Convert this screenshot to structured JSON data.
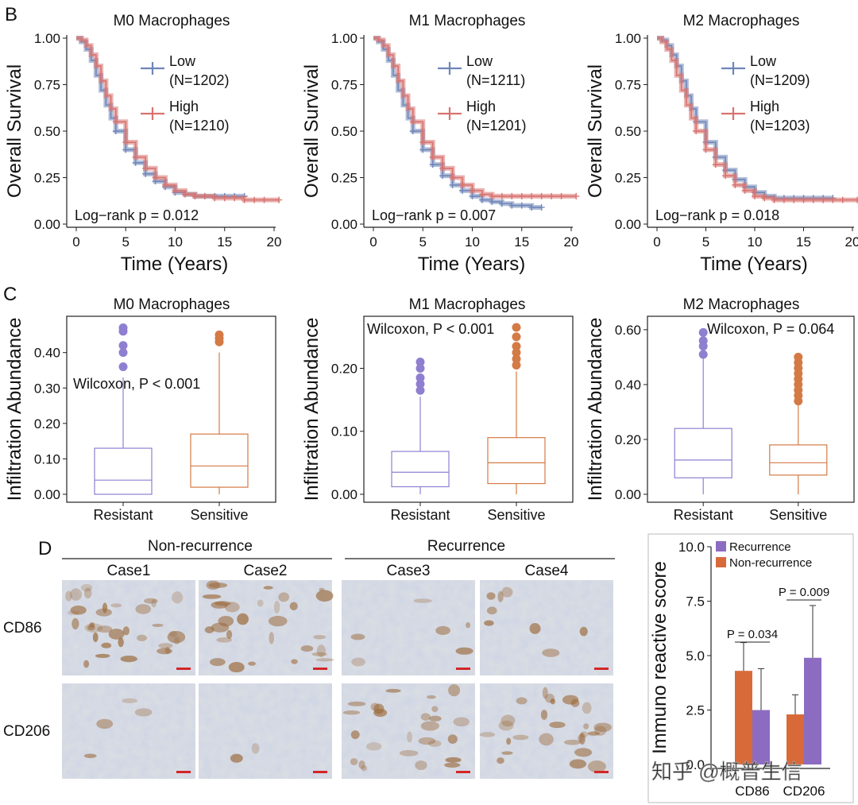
{
  "panel_labels": {
    "B": "B",
    "C": "C",
    "D": "D"
  },
  "colors": {
    "low": "#6f86b8",
    "high": "#d8736f",
    "resistant": "#8f7fd0",
    "sensitive": "#d47a45",
    "recurrence": "#8c6cc0",
    "non_recurrence": "#d86a3a",
    "ihc_bg": "#d9dde3",
    "ihc_brown": "#9a6838",
    "scale_bar": "#d42626"
  },
  "chart_data": [
    {
      "id": "km-m0",
      "type": "line",
      "title": "M0 Macrophages",
      "xlabel": "Time (Years)",
      "ylabel": "Overall Survival",
      "xlim": [
        0,
        20
      ],
      "ylim": [
        0,
        1
      ],
      "xticks": [
        "0",
        "5",
        "10",
        "15",
        "20"
      ],
      "yticks": [
        "0.00",
        "0.25",
        "0.50",
        "0.75",
        "1.00"
      ],
      "annotation": "Log−rank p = 0.012",
      "legend_position": "top-right",
      "series": [
        {
          "name": "Low",
          "n_label": "(N=1202)",
          "color": "#6f86b8",
          "x": [
            0,
            0.5,
            1,
            1.5,
            2,
            2.5,
            3,
            3.5,
            4,
            5,
            6,
            7,
            8,
            9,
            10,
            11,
            12,
            13,
            14,
            15,
            16,
            17
          ],
          "y": [
            1.0,
            0.98,
            0.94,
            0.88,
            0.8,
            0.72,
            0.64,
            0.57,
            0.5,
            0.4,
            0.33,
            0.27,
            0.23,
            0.2,
            0.17,
            0.16,
            0.15,
            0.15,
            0.15,
            0.15,
            0.15,
            0.15
          ]
        },
        {
          "name": "High",
          "n_label": "(N=1210)",
          "color": "#d8736f",
          "x": [
            0,
            0.5,
            1,
            1.5,
            2,
            2.5,
            3,
            3.5,
            4,
            5,
            6,
            7,
            8,
            9,
            10,
            11,
            12,
            13,
            14,
            15,
            16,
            17,
            18,
            19,
            20.5
          ],
          "y": [
            1.0,
            0.99,
            0.96,
            0.91,
            0.85,
            0.77,
            0.69,
            0.62,
            0.55,
            0.44,
            0.36,
            0.3,
            0.25,
            0.21,
            0.18,
            0.16,
            0.15,
            0.15,
            0.14,
            0.14,
            0.14,
            0.13,
            0.13,
            0.13,
            0.13
          ]
        }
      ]
    },
    {
      "id": "km-m1",
      "type": "line",
      "title": "M1 Macrophages",
      "xlabel": "Time (Years)",
      "ylabel": "Overall Survival",
      "xlim": [
        0,
        20
      ],
      "ylim": [
        0,
        1
      ],
      "xticks": [
        "0",
        "5",
        "10",
        "15",
        "20"
      ],
      "yticks": [
        "0.00",
        "0.25",
        "0.50",
        "0.75",
        "1.00"
      ],
      "annotation": "Log−rank p = 0.007",
      "legend_position": "top-right",
      "series": [
        {
          "name": "Low",
          "n_label": "(N=1211)",
          "color": "#6f86b8",
          "x": [
            0,
            0.5,
            1,
            1.5,
            2,
            2.5,
            3,
            3.5,
            4,
            5,
            6,
            7,
            8,
            9,
            10,
            11,
            12,
            13,
            14,
            15,
            16,
            17
          ],
          "y": [
            1.0,
            0.98,
            0.94,
            0.88,
            0.8,
            0.72,
            0.64,
            0.57,
            0.5,
            0.4,
            0.32,
            0.26,
            0.21,
            0.18,
            0.15,
            0.13,
            0.12,
            0.11,
            0.1,
            0.1,
            0.09,
            0.09
          ]
        },
        {
          "name": "High",
          "n_label": "(N=1201)",
          "color": "#d8736f",
          "x": [
            0,
            0.5,
            1,
            1.5,
            2,
            2.5,
            3,
            3.5,
            4,
            5,
            6,
            7,
            8,
            9,
            10,
            11,
            12,
            13,
            14,
            15,
            16,
            17,
            18,
            19,
            20.5
          ],
          "y": [
            1.0,
            0.99,
            0.96,
            0.91,
            0.85,
            0.77,
            0.69,
            0.62,
            0.55,
            0.44,
            0.36,
            0.3,
            0.25,
            0.21,
            0.18,
            0.16,
            0.15,
            0.15,
            0.15,
            0.15,
            0.15,
            0.15,
            0.15,
            0.15,
            0.15
          ]
        }
      ]
    },
    {
      "id": "km-m2",
      "type": "line",
      "title": "M2 Macrophages",
      "xlabel": "Time (Years)",
      "ylabel": "Overall Survival",
      "xlim": [
        0,
        20
      ],
      "ylim": [
        0,
        1
      ],
      "xticks": [
        "0",
        "5",
        "10",
        "15",
        "20"
      ],
      "yticks": [
        "0.00",
        "0.25",
        "0.50",
        "0.75",
        "1.00"
      ],
      "annotation": "Log−rank p = 0.018",
      "legend_position": "top-right",
      "series": [
        {
          "name": "Low",
          "n_label": "(N=1209)",
          "color": "#6f86b8",
          "x": [
            0,
            0.5,
            1,
            1.5,
            2,
            2.5,
            3,
            3.5,
            4,
            5,
            6,
            7,
            8,
            9,
            10,
            11,
            12,
            13,
            14,
            15,
            16,
            17,
            18
          ],
          "y": [
            1.0,
            0.99,
            0.96,
            0.91,
            0.85,
            0.77,
            0.69,
            0.62,
            0.55,
            0.44,
            0.36,
            0.29,
            0.24,
            0.2,
            0.17,
            0.15,
            0.14,
            0.14,
            0.14,
            0.14,
            0.14,
            0.14,
            0.14
          ]
        },
        {
          "name": "High",
          "n_label": "(N=1203)",
          "color": "#d8736f",
          "x": [
            0,
            0.5,
            1,
            1.5,
            2,
            2.5,
            3,
            3.5,
            4,
            5,
            6,
            7,
            8,
            9,
            10,
            11,
            12,
            13,
            14,
            15,
            16,
            17,
            18,
            19,
            20.5
          ],
          "y": [
            1.0,
            0.98,
            0.94,
            0.88,
            0.8,
            0.72,
            0.64,
            0.57,
            0.5,
            0.4,
            0.32,
            0.26,
            0.21,
            0.18,
            0.15,
            0.14,
            0.13,
            0.13,
            0.13,
            0.13,
            0.13,
            0.13,
            0.13,
            0.13,
            0.13
          ]
        }
      ]
    },
    {
      "id": "box-m0",
      "type": "box",
      "title": "M0 Macrophages",
      "ylabel": "Infiltration Abundance",
      "ylim": [
        0,
        0.48
      ],
      "yticks": [
        "0.00",
        "0.10",
        "0.20",
        "0.30",
        "0.40"
      ],
      "categories": [
        "Resistant",
        "Sensitive"
      ],
      "annotation": "Wilcoxon, P < 0.001",
      "boxes": [
        {
          "group": "Resistant",
          "color": "#8f7fd0",
          "min": 0.0,
          "q1": 0.0,
          "median": 0.04,
          "q3": 0.13,
          "max": 0.33,
          "outliers": [
            0.36,
            0.4,
            0.42,
            0.46,
            0.47
          ]
        },
        {
          "group": "Sensitive",
          "color": "#d47a45",
          "min": 0.0,
          "q1": 0.02,
          "median": 0.08,
          "q3": 0.17,
          "max": 0.4,
          "outliers": [
            0.43,
            0.44,
            0.45
          ]
        }
      ]
    },
    {
      "id": "box-m1",
      "type": "box",
      "title": "M1 Macrophages",
      "ylabel": "Infiltration Abundance",
      "ylim": [
        0,
        0.27
      ],
      "yticks": [
        "0.00",
        "0.10",
        "0.20"
      ],
      "categories": [
        "Resistant",
        "Sensitive"
      ],
      "annotation": "Wilcoxon, P < 0.001",
      "boxes": [
        {
          "group": "Resistant",
          "color": "#8f7fd0",
          "min": 0.0,
          "q1": 0.012,
          "median": 0.035,
          "q3": 0.068,
          "max": 0.155,
          "outliers": [
            0.165,
            0.175,
            0.185,
            0.2,
            0.21
          ]
        },
        {
          "group": "Sensitive",
          "color": "#d47a45",
          "min": 0.0,
          "q1": 0.017,
          "median": 0.05,
          "q3": 0.09,
          "max": 0.195,
          "outliers": [
            0.205,
            0.215,
            0.225,
            0.235,
            0.25,
            0.265
          ]
        }
      ]
    },
    {
      "id": "box-m2",
      "type": "box",
      "title": "M2 Macrophages",
      "ylabel": "Infiltration Abundance",
      "ylim": [
        0,
        0.62
      ],
      "yticks": [
        "0.00",
        "0.20",
        "0.40",
        "0.60"
      ],
      "categories": [
        "Resistant",
        "Sensitive"
      ],
      "annotation": "Wilcoxon, P = 0.064",
      "boxes": [
        {
          "group": "Resistant",
          "color": "#8f7fd0",
          "min": 0.0,
          "q1": 0.06,
          "median": 0.125,
          "q3": 0.24,
          "max": 0.5,
          "outliers": [
            0.51,
            0.54,
            0.56,
            0.59
          ]
        },
        {
          "group": "Sensitive",
          "color": "#d47a45",
          "min": 0.0,
          "q1": 0.07,
          "median": 0.115,
          "q3": 0.18,
          "max": 0.33,
          "outliers": [
            0.34,
            0.36,
            0.38,
            0.4,
            0.42,
            0.44,
            0.46,
            0.48,
            0.5
          ]
        }
      ]
    },
    {
      "id": "bar-irs",
      "type": "bar",
      "ylabel": "Immuno reactive score",
      "ylim": [
        0,
        10
      ],
      "yticks": [
        "0.0",
        "2.5",
        "5.0",
        "7.5",
        "10.0"
      ],
      "categories": [
        "CD86",
        "CD206"
      ],
      "legend_position": "top-left",
      "series": [
        {
          "name": "Non-recurrence",
          "color": "#d86a3a",
          "values": [
            4.3,
            2.3
          ],
          "errors": [
            1.3,
            0.9
          ]
        },
        {
          "name": "Recurrence",
          "color": "#8c6cc0",
          "values": [
            2.5,
            4.9
          ],
          "errors": [
            1.9,
            2.4
          ]
        }
      ],
      "annotations": [
        {
          "label": "P = 0.034",
          "category": "CD86"
        },
        {
          "label": "P = 0.009",
          "category": "CD206"
        }
      ]
    }
  ],
  "panel_d": {
    "groups": [
      "Non-recurrence",
      "Recurrence"
    ],
    "cases": [
      "Case1",
      "Case2",
      "Case3",
      "Case4"
    ],
    "markers": [
      "CD86",
      "CD206"
    ],
    "stain_intensity": [
      [
        0.85,
        0.75,
        0.15,
        0.2
      ],
      [
        0.1,
        0.05,
        0.65,
        0.7
      ]
    ]
  },
  "watermark": "知乎 @概普生信"
}
